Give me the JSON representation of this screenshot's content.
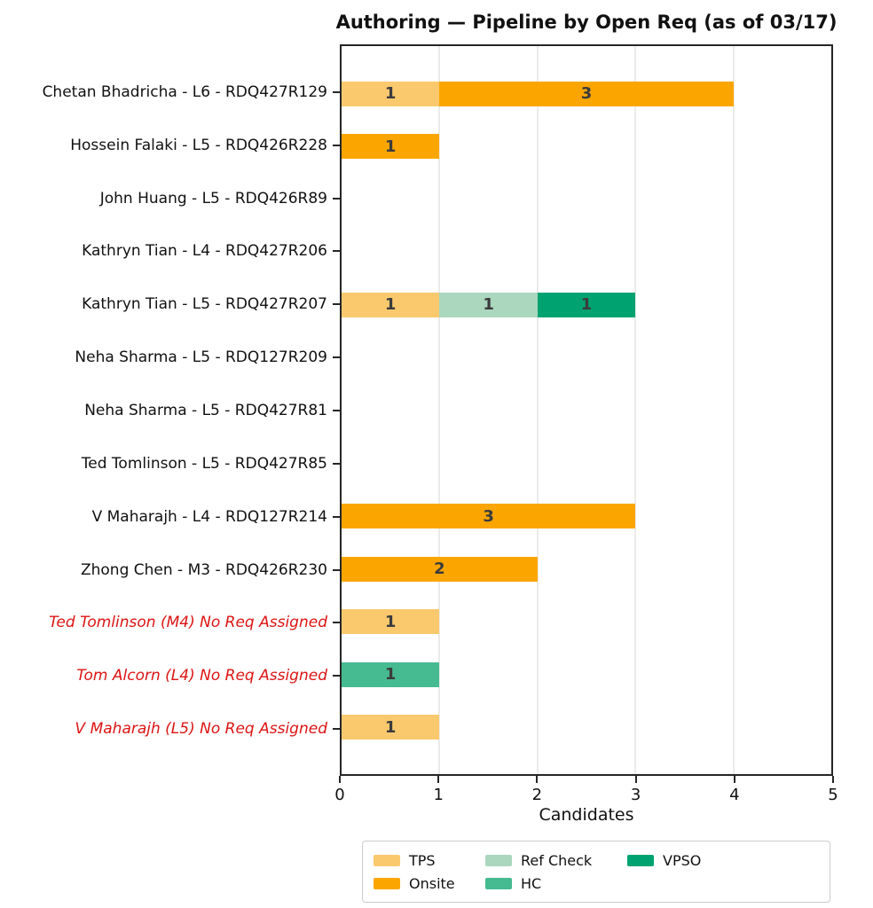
{
  "chart_data": {
    "type": "bar",
    "orientation": "horizontal",
    "stacked": true,
    "title": "Authoring — Pipeline by Open Req (as of 03/17)",
    "xlabel": "Candidates",
    "xlim": [
      0,
      5
    ],
    "xticks": [
      0,
      1,
      2,
      3,
      4,
      5
    ],
    "grid": "vertical-light",
    "legend_position": "bottom-center",
    "colors": {
      "axis": "#262626",
      "grid": "#ebebeb",
      "bar_value_label": "#3b3b3b",
      "no_req_label": "#dc1414",
      "normal_label": "#111111",
      "legend_border": "#cccccc"
    },
    "stages": [
      {
        "name": "TPS",
        "color": "#FAC96E"
      },
      {
        "name": "Onsite",
        "color": "#FBA600"
      },
      {
        "name": "Ref Check",
        "color": "#AAD7BE"
      },
      {
        "name": "HC",
        "color": "#46BA90"
      },
      {
        "name": "VPSO",
        "color": "#00A36F"
      }
    ],
    "rows": [
      {
        "label": "Chetan Bhadricha - L6 - RDQ427R129",
        "no_req": false,
        "segments": [
          {
            "stage": "TPS",
            "value": 1
          },
          {
            "stage": "Onsite",
            "value": 3
          }
        ]
      },
      {
        "label": "Hossein Falaki - L5 - RDQ426R228",
        "no_req": false,
        "segments": [
          {
            "stage": "Onsite",
            "value": 1
          }
        ]
      },
      {
        "label": "John Huang - L5 - RDQ426R89",
        "no_req": false,
        "segments": []
      },
      {
        "label": "Kathryn Tian - L4 - RDQ427R206",
        "no_req": false,
        "segments": []
      },
      {
        "label": "Kathryn Tian - L5 - RDQ427R207",
        "no_req": false,
        "segments": [
          {
            "stage": "TPS",
            "value": 1
          },
          {
            "stage": "Ref Check",
            "value": 1
          },
          {
            "stage": "VPSO",
            "value": 1
          }
        ]
      },
      {
        "label": "Neha Sharma - L5 - RDQ127R209",
        "no_req": false,
        "segments": []
      },
      {
        "label": "Neha Sharma - L5 - RDQ427R81",
        "no_req": false,
        "segments": []
      },
      {
        "label": "Ted Tomlinson - L5 - RDQ427R85",
        "no_req": false,
        "segments": []
      },
      {
        "label": "V Maharajh - L4 - RDQ127R214",
        "no_req": false,
        "segments": [
          {
            "stage": "Onsite",
            "value": 3
          }
        ]
      },
      {
        "label": "Zhong Chen - M3 - RDQ426R230",
        "no_req": false,
        "segments": [
          {
            "stage": "Onsite",
            "value": 2
          }
        ]
      },
      {
        "label": "Ted Tomlinson (M4) No Req Assigned",
        "no_req": true,
        "segments": [
          {
            "stage": "TPS",
            "value": 1
          }
        ]
      },
      {
        "label": "Tom Alcorn (L4) No Req Assigned",
        "no_req": true,
        "segments": [
          {
            "stage": "HC",
            "value": 1
          }
        ]
      },
      {
        "label": "V Maharajh (L5) No Req Assigned",
        "no_req": true,
        "segments": [
          {
            "stage": "TPS",
            "value": 1
          }
        ]
      }
    ],
    "legend_entries": [
      "TPS",
      "Onsite",
      "Ref Check",
      "HC",
      "VPSO"
    ]
  }
}
